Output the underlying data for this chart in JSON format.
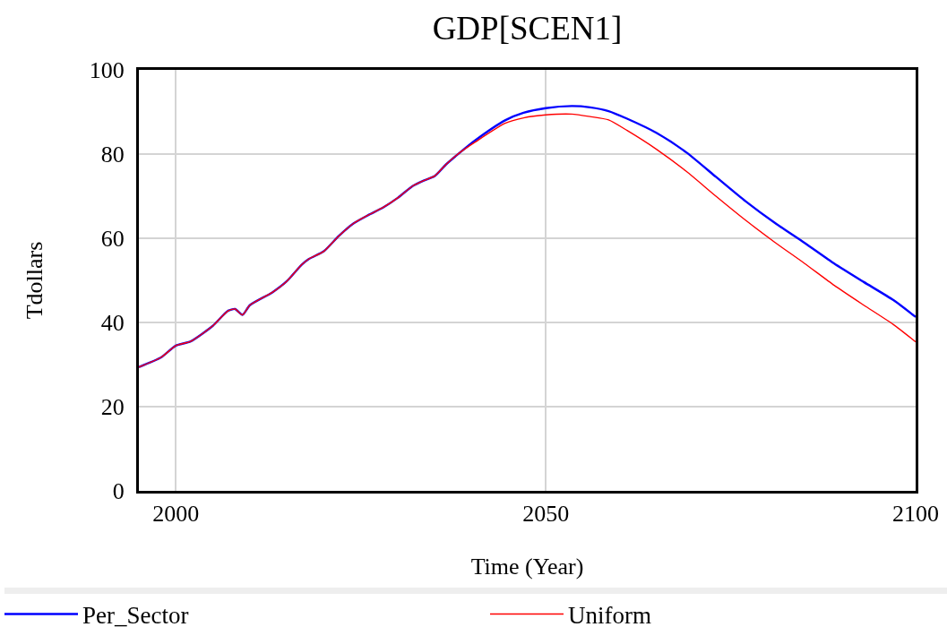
{
  "chart_data": {
    "type": "line",
    "title": "GDP[SCEN1]",
    "xlabel": "Time (Year)",
    "ylabel": "Tdollars",
    "x": [
      1995,
      1998,
      2000,
      2002,
      2005,
      2007,
      2008,
      2009,
      2010,
      2013,
      2015,
      2017,
      2018,
      2020,
      2022,
      2024,
      2026,
      2028,
      2030,
      2032,
      2033.5,
      2035,
      2036.5,
      2038.5,
      2040.5,
      2044.5,
      2047,
      2050,
      2053.5,
      2056,
      2058.5,
      2061,
      2065,
      2069,
      2073,
      2077,
      2081,
      2085,
      2089,
      2093,
      2097,
      2100
    ],
    "series": [
      {
        "name": "Per_Sector",
        "color": "#0000ff",
        "values": [
          29.4,
          31.7,
          34.5,
          35.5,
          39.2,
          42.7,
          43.2,
          41.8,
          44.1,
          47.1,
          49.8,
          53.7,
          55.1,
          56.9,
          60.5,
          63.5,
          65.5,
          67.3,
          69.6,
          72.4,
          73.7,
          74.8,
          77.5,
          80.5,
          83.3,
          88.0,
          89.8,
          90.9,
          91.4,
          91.1,
          90.2,
          88.4,
          85.0,
          80.4,
          74.6,
          68.8,
          63.6,
          58.9,
          54.0,
          49.6,
          45.3,
          41.3
        ]
      },
      {
        "name": "Uniform",
        "color": "#ff0000",
        "values": [
          29.4,
          31.7,
          34.5,
          35.5,
          39.2,
          42.7,
          43.2,
          41.8,
          44.1,
          47.1,
          49.8,
          53.7,
          55.1,
          56.9,
          60.5,
          63.5,
          65.5,
          67.3,
          69.6,
          72.4,
          73.7,
          74.8,
          77.5,
          80.5,
          82.9,
          87.3,
          88.6,
          89.3,
          89.5,
          88.9,
          88.1,
          85.6,
          81.1,
          75.9,
          70.0,
          64.3,
          59.0,
          54.0,
          48.8,
          44.1,
          39.5,
          35.4
        ]
      }
    ],
    "xlim": [
      1995,
      2100
    ],
    "xticks": [
      2000,
      2050,
      2100
    ],
    "ylim": [
      0,
      100
    ],
    "yticks": [
      0,
      20,
      40,
      60,
      80,
      100
    ],
    "grid": true,
    "legend": "bottom",
    "marker": "none",
    "line_style": "solid"
  }
}
